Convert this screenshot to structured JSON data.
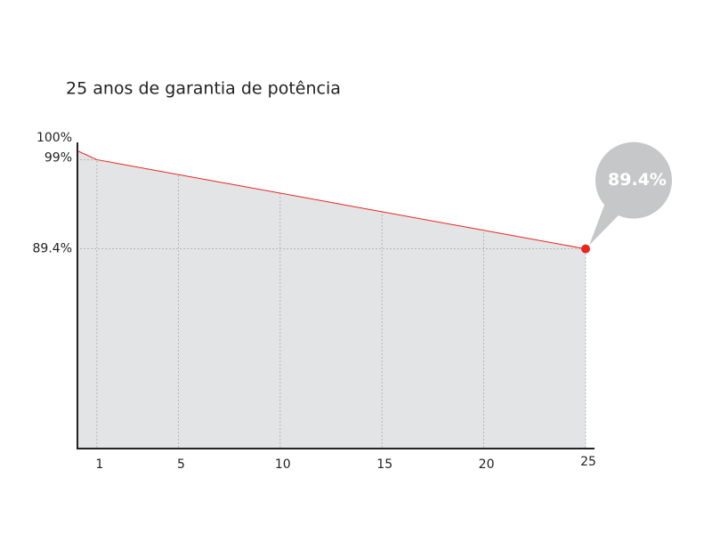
{
  "chart_data": {
    "type": "area",
    "title": "25  anos de garantia de potência",
    "x": [
      0,
      1,
      25
    ],
    "values": [
      100,
      99,
      89.4
    ],
    "value_labels": [
      null,
      null,
      "89.4%"
    ],
    "color": "#e8251f",
    "fill": "#e3e4e5",
    "xlim": [
      0,
      25
    ],
    "xticks": [
      1,
      5,
      10,
      15,
      20,
      25
    ],
    "ylim": [
      68,
      100
    ],
    "yticks": [
      {
        "value": 100,
        "label": "100%"
      },
      {
        "value": 99,
        "label": "99%"
      },
      {
        "value": 89.4,
        "label": "89.4%"
      }
    ],
    "grid": true
  }
}
